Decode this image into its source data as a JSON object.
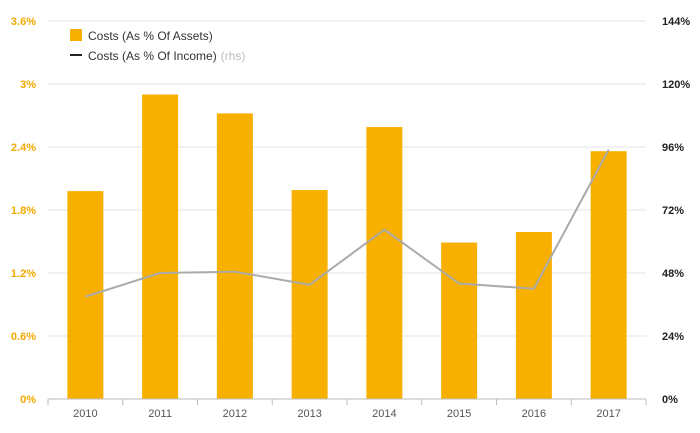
{
  "chart_data": {
    "type": "bar",
    "categories": [
      "2010",
      "2011",
      "2012",
      "2013",
      "2014",
      "2015",
      "2016",
      "2017"
    ],
    "series": [
      {
        "name": "Costs (As % Of Assets)",
        "kind": "bar",
        "axis": "left",
        "color": "#f8b000",
        "values": [
          1.98,
          2.9,
          2.72,
          1.99,
          2.59,
          1.49,
          1.59,
          2.36
        ]
      },
      {
        "name": "Costs (As % Of Income)",
        "kind": "line",
        "axis": "right",
        "color": "#aaaaaa",
        "values": [
          39,
          48,
          48.5,
          43.5,
          64.5,
          44,
          42,
          95
        ]
      }
    ],
    "legend": {
      "items": [
        {
          "label": "Costs (As % Of Assets)",
          "marker": "square",
          "color": "#f8b000"
        },
        {
          "label": "Costs (As % Of Income)",
          "suffix": "(rhs)",
          "marker": "line",
          "color": "#222222"
        }
      ],
      "placement": "top-left"
    },
    "y_left": {
      "ticks": [
        0,
        0.6,
        1.2,
        1.8,
        2.4,
        3,
        3.6
      ],
      "tick_labels": [
        "0%",
        "0.6%",
        "1.2%",
        "1.8%",
        "2.4%",
        "3%",
        "3.6%"
      ],
      "range": [
        0,
        3.6
      ],
      "color": "#f2a900"
    },
    "y_right": {
      "ticks": [
        0,
        24,
        48,
        72,
        96,
        120,
        144
      ],
      "tick_labels": [
        "0%",
        "24%",
        "48%",
        "72%",
        "96%",
        "120%",
        "144%"
      ],
      "range": [
        0,
        144
      ],
      "color": "#222222"
    },
    "grid": true
  }
}
